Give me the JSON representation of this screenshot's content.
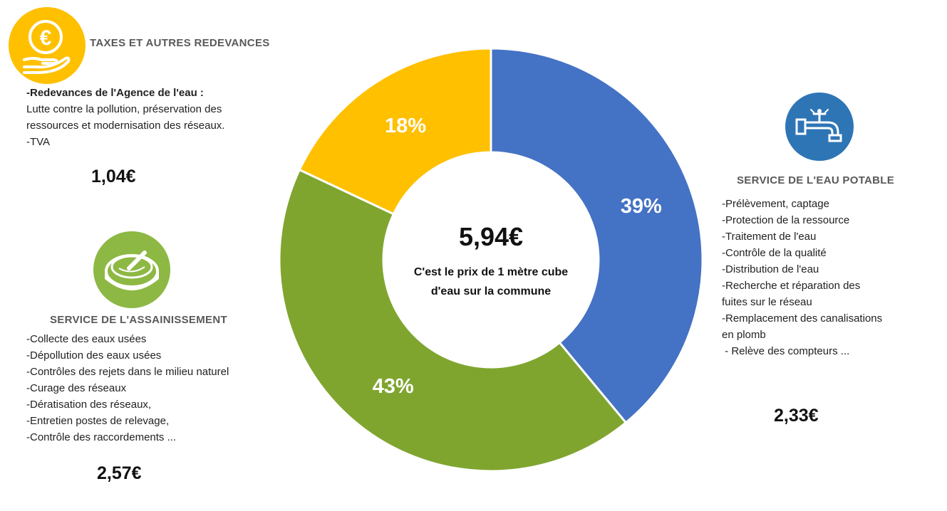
{
  "colors": {
    "eau_potable": "#4472C4",
    "assainissement": "#7FA52F",
    "taxes": "#FFC000",
    "icon_taxes": "#FFC000",
    "icon_eau": "#2E75B6",
    "icon_assainissement": "#8DB843"
  },
  "taxes": {
    "heading": "TAXES ET AUTRES REDEVANCES",
    "icon": "euro-coin-hand-icon",
    "subheading": "-Redevances de l'Agence de l'eau :",
    "lines": [
      "Lutte contre la pollution,  préservation des",
      "ressources et modernisation des réseaux.",
      "-TVA"
    ],
    "amount": "1,04€"
  },
  "assainissement": {
    "heading": "SERVICE DE L'ASSAINISSEMENT",
    "icon": "manhole-cover-icon",
    "lines": [
      "-Collecte des eaux usées",
      "-Dépollution des eaux usées",
      "-Contrôles des rejets dans le milieu naturel",
      "-Curage des réseaux",
      "-Dératisation des réseaux,",
      "-Entretien postes de relevage,",
      "-Contrôle des raccordements ..."
    ],
    "amount": "2,57€"
  },
  "eau_potable": {
    "heading": "SERVICE DE L'EAU POTABLE",
    "icon": "water-tap-icon",
    "lines": [
      "-Prélèvement, captage",
      "-Protection de la ressource",
      "-Traitement de l'eau",
      "-Contrôle de la qualité",
      "-Distribution de l'eau",
      "-Recherche et réparation des",
      "fuites sur le réseau",
      "-Remplacement des canalisations",
      "en plomb",
      " - Relève des compteurs ..."
    ],
    "amount": "2,33€"
  },
  "center": {
    "total": "5,94€",
    "caption_line1": "C'est le prix de 1 mètre cube",
    "caption_line2": "d'eau sur la commune"
  },
  "chart_data": {
    "type": "pie",
    "hole": "donut",
    "categories": [
      "SERVICE DE L'EAU POTABLE",
      "SERVICE DE L'ASSAINISSEMENT",
      "TAXES ET AUTRES REDEVANCES"
    ],
    "values": [
      39,
      43,
      18
    ],
    "labels": [
      "39%",
      "43%",
      "18%"
    ],
    "amounts": [
      "2,33€",
      "2,57€",
      "1,04€"
    ],
    "colors": [
      "#4472C4",
      "#7FA52F",
      "#FFC000"
    ]
  }
}
